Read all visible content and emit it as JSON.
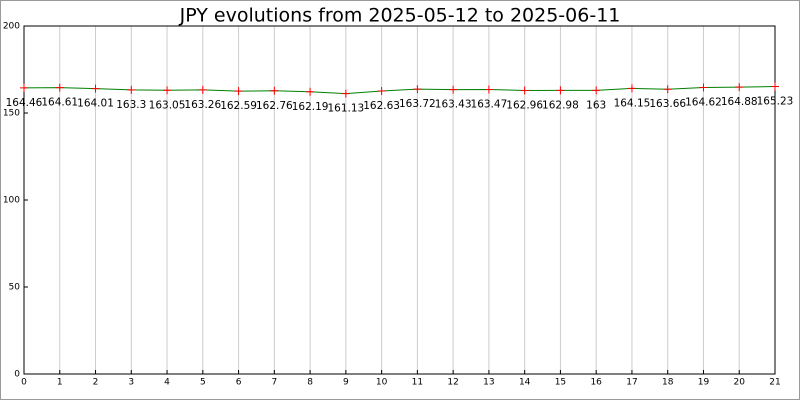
{
  "chart_data": {
    "type": "line",
    "title": "JPY evolutions from 2025-05-12 to 2025-06-11",
    "x": [
      0,
      1,
      2,
      3,
      4,
      5,
      6,
      7,
      8,
      9,
      10,
      11,
      12,
      13,
      14,
      15,
      16,
      17,
      18,
      19,
      20,
      21
    ],
    "series": [
      {
        "color": "#008000",
        "marker_color": "#ff0000",
        "values": [
          164.46,
          164.61,
          164.01,
          163.3,
          163.05,
          163.26,
          162.59,
          162.76,
          162.19,
          161.13,
          162.63,
          163.72,
          163.43,
          163.47,
          162.96,
          162.98,
          163,
          164.15,
          163.66,
          164.62,
          164.88,
          165.23
        ]
      }
    ],
    "xlim": [
      0,
      21
    ],
    "xticks": [
      0,
      1,
      2,
      3,
      4,
      5,
      6,
      7,
      8,
      9,
      10,
      11,
      12,
      13,
      14,
      15,
      16,
      17,
      18,
      19,
      20,
      21
    ],
    "ylim": [
      0,
      200
    ],
    "yticks": [
      0,
      50,
      100,
      150,
      200
    ],
    "grid": "x"
  }
}
